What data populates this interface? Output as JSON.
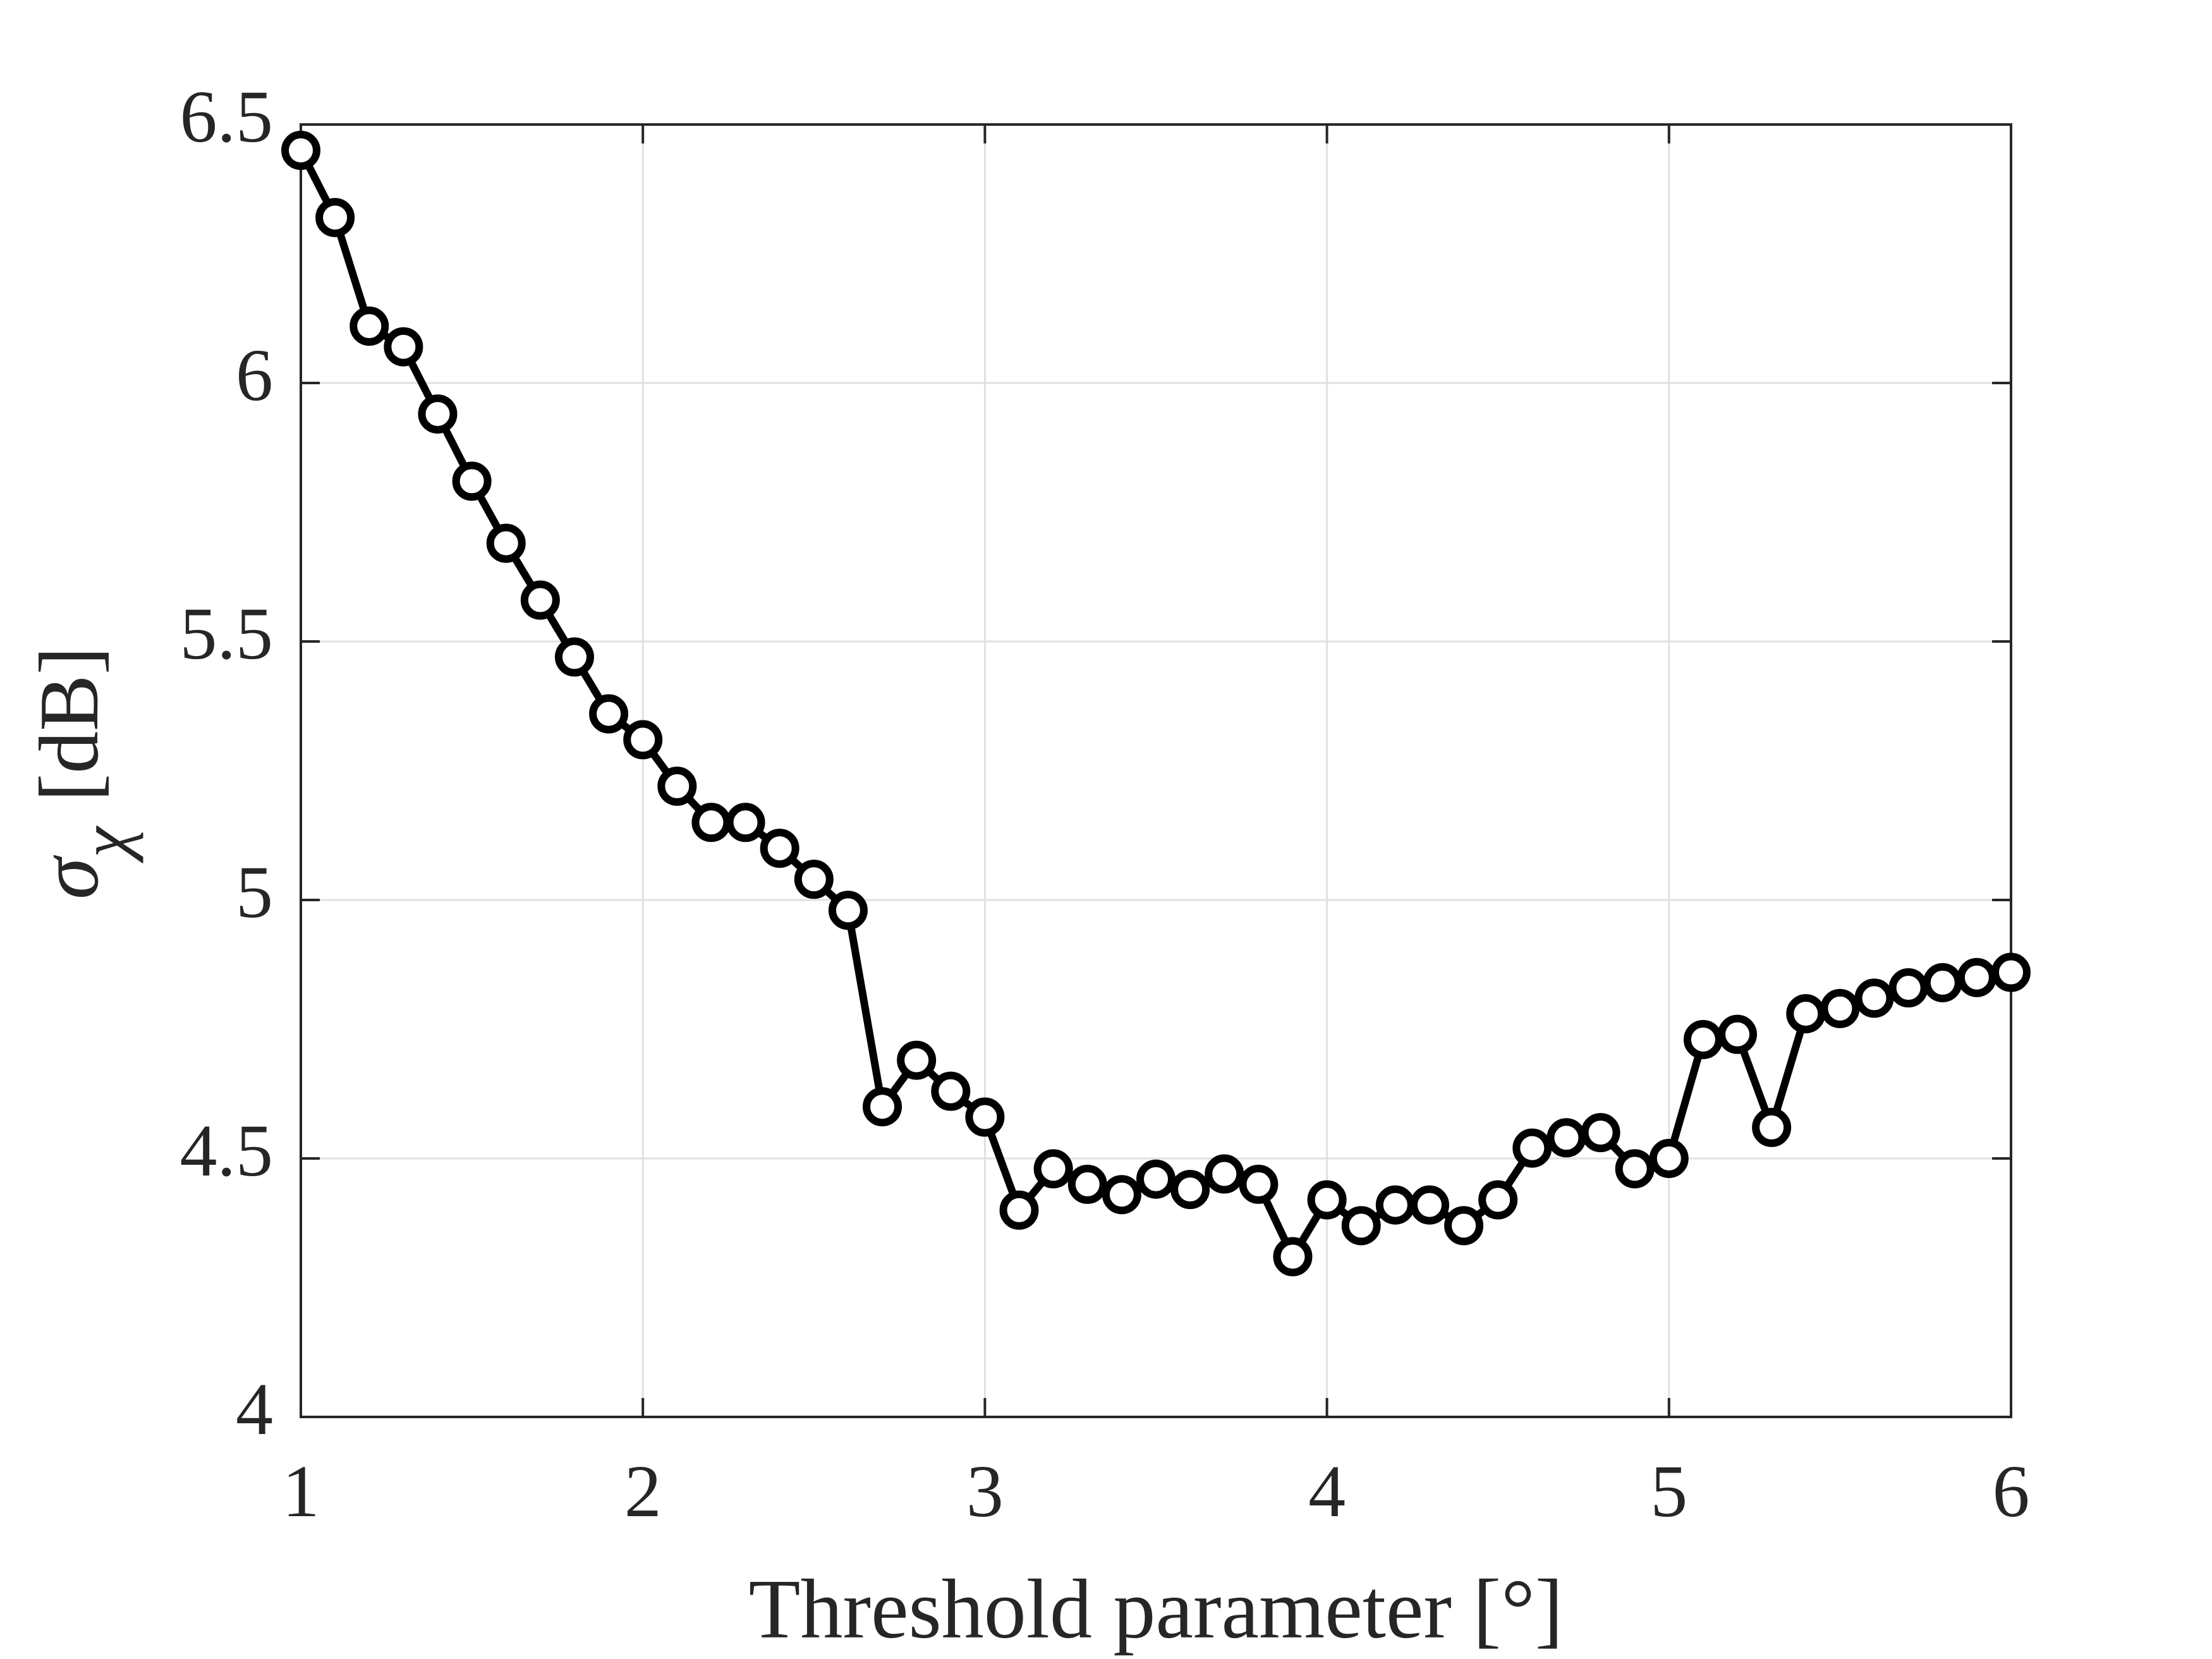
{
  "chart_data": {
    "type": "line",
    "xlabel": "Threshold parameter [°]",
    "ylabel": {
      "symbol": "σ",
      "subscript": "χ",
      "unit": "[dB]"
    },
    "x": [
      1.0,
      1.1,
      1.2,
      1.3,
      1.4,
      1.5,
      1.6,
      1.7,
      1.8,
      1.9,
      2.0,
      2.1,
      2.2,
      2.3,
      2.4,
      2.5,
      2.6,
      2.7,
      2.8,
      2.9,
      3.0,
      3.1,
      3.2,
      3.3,
      3.4,
      3.5,
      3.6,
      3.7,
      3.8,
      3.9,
      4.0,
      4.1,
      4.2,
      4.3,
      4.4,
      4.5,
      4.6,
      4.7,
      4.8,
      4.9,
      5.0,
      5.1,
      5.2,
      5.3,
      5.4,
      5.5,
      5.6,
      5.7,
      5.8,
      5.9,
      6.0
    ],
    "values": [
      6.45,
      6.32,
      6.11,
      6.07,
      5.94,
      5.81,
      5.69,
      5.58,
      5.47,
      5.36,
      5.31,
      5.22,
      5.15,
      5.15,
      5.1,
      5.04,
      4.98,
      4.6,
      4.69,
      4.63,
      4.58,
      4.4,
      4.48,
      4.45,
      4.43,
      4.46,
      4.44,
      4.47,
      4.45,
      4.31,
      4.42,
      4.37,
      4.41,
      4.41,
      4.37,
      4.42,
      4.52,
      4.54,
      4.55,
      4.48,
      4.5,
      4.73,
      4.74,
      4.56,
      4.78,
      4.79,
      4.81,
      4.83,
      4.84,
      4.85,
      4.86
    ],
    "color": "#000000",
    "xlim": [
      1,
      6
    ],
    "xticks": [
      1,
      2,
      3,
      4,
      5,
      6
    ],
    "ylim": [
      4,
      6.5
    ],
    "yticks": [
      4,
      4.5,
      5,
      5.5,
      6,
      6.5
    ],
    "grid": true
  }
}
